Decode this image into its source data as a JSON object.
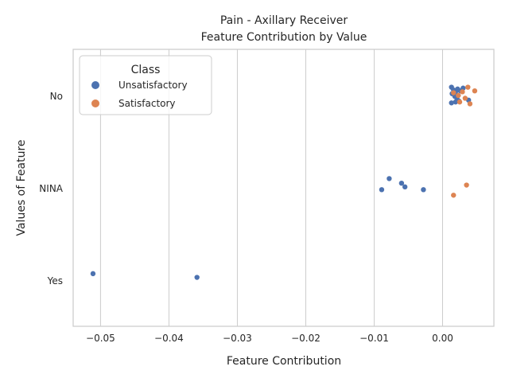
{
  "chart_data": {
    "type": "scatter",
    "title": "Pain - Axillary Receiver",
    "subtitle": "Feature Contribution by Value",
    "xlabel": "Feature Contribution",
    "ylabel": "Values of Feature",
    "xlim": [
      -0.054,
      0.0075
    ],
    "x_ticks": [
      -0.05,
      -0.04,
      -0.03,
      -0.02,
      -0.01,
      0.0
    ],
    "x_tick_labels": [
      "−0.05",
      "−0.04",
      "−0.03",
      "−0.02",
      "−0.01",
      "0.00"
    ],
    "categories": [
      "No",
      "NINA",
      "Yes"
    ],
    "grid": "x",
    "legend": {
      "title": "Class",
      "placement": "top-left",
      "entries": [
        "Unsatisfactory",
        "Satisfactory"
      ]
    },
    "series": [
      {
        "name": "Unsatisfactory",
        "color": "#4c72b0",
        "points": [
          {
            "x": 0.0013,
            "y": "No",
            "jitter": -0.09
          },
          {
            "x": 0.0016,
            "y": "No",
            "jitter": -0.06
          },
          {
            "x": 0.0019,
            "y": "No",
            "jitter": -0.04
          },
          {
            "x": 0.0022,
            "y": "No",
            "jitter": -0.07
          },
          {
            "x": 0.003,
            "y": "No",
            "jitter": -0.08
          },
          {
            "x": 0.0014,
            "y": "No",
            "jitter": -0.02
          },
          {
            "x": 0.0018,
            "y": "No",
            "jitter": 0.01
          },
          {
            "x": 0.0021,
            "y": "No",
            "jitter": 0.03
          },
          {
            "x": 0.0024,
            "y": "No",
            "jitter": 0.06
          },
          {
            "x": 0.0019,
            "y": "No",
            "jitter": 0.07
          },
          {
            "x": 0.0013,
            "y": "No",
            "jitter": 0.08
          },
          {
            "x": 0.0038,
            "y": "No",
            "jitter": 0.05
          },
          {
            "x": 0.0026,
            "y": "No",
            "jitter": -0.05
          },
          {
            "x": -0.0078,
            "y": "NINA",
            "jitter": -0.1
          },
          {
            "x": -0.006,
            "y": "NINA",
            "jitter": -0.05
          },
          {
            "x": -0.0055,
            "y": "NINA",
            "jitter": -0.01
          },
          {
            "x": -0.0089,
            "y": "NINA",
            "jitter": 0.02
          },
          {
            "x": -0.0028,
            "y": "NINA",
            "jitter": 0.02
          },
          {
            "x": -0.0511,
            "y": "Yes",
            "jitter": -0.07
          },
          {
            "x": -0.0359,
            "y": "Yes",
            "jitter": -0.03
          }
        ]
      },
      {
        "name": "Satisfactory",
        "color": "#dd8452",
        "points": [
          {
            "x": 0.0037,
            "y": "No",
            "jitter": -0.09
          },
          {
            "x": 0.0047,
            "y": "No",
            "jitter": -0.05
          },
          {
            "x": 0.0029,
            "y": "No",
            "jitter": -0.04
          },
          {
            "x": 0.0016,
            "y": "No",
            "jitter": -0.03
          },
          {
            "x": 0.0023,
            "y": "No",
            "jitter": 0.0
          },
          {
            "x": 0.0033,
            "y": "No",
            "jitter": 0.03
          },
          {
            "x": 0.0025,
            "y": "No",
            "jitter": 0.07
          },
          {
            "x": 0.004,
            "y": "No",
            "jitter": 0.09
          },
          {
            "x": 0.0035,
            "y": "NINA",
            "jitter": -0.03
          },
          {
            "x": 0.0016,
            "y": "NINA",
            "jitter": 0.08
          }
        ]
      }
    ]
  }
}
